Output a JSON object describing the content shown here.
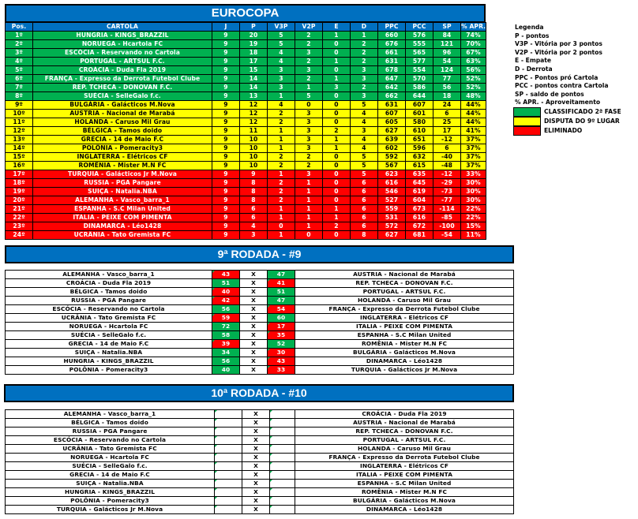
{
  "title": "EUROCOPA",
  "colors": {
    "header": "#0070C0",
    "classified": "#00B050",
    "playoff": "#FFFF00",
    "eliminated": "#FF0000"
  },
  "standings": {
    "columns": [
      "Pos.",
      "CARTOLA",
      "J",
      "P",
      "V3P",
      "V2P",
      "E",
      "D",
      "PPC",
      "PCC",
      "SP",
      "% APR."
    ],
    "rows": [
      {
        "zone": "g",
        "cells": [
          "1º",
          "HUNGRIA - KINGS_BRAZZIL",
          "9",
          "20",
          "5",
          "2",
          "1",
          "1",
          "660",
          "576",
          "84",
          "74%"
        ]
      },
      {
        "zone": "g",
        "cells": [
          "2º",
          "NORUEGA  - Hcartola FC",
          "9",
          "19",
          "5",
          "2",
          "0",
          "2",
          "676",
          "555",
          "121",
          "70%"
        ]
      },
      {
        "zone": "g",
        "cells": [
          "3º",
          "ESCÓCIA - Reservando no Cartola",
          "9",
          "18",
          "4",
          "3",
          "0",
          "2",
          "661",
          "565",
          "96",
          "67%"
        ]
      },
      {
        "zone": "g",
        "cells": [
          "4º",
          "PORTUGAL - ARTSUL F.C.",
          "9",
          "17",
          "4",
          "2",
          "1",
          "2",
          "631",
          "577",
          "54",
          "63%"
        ]
      },
      {
        "zone": "g",
        "cells": [
          "5º",
          "CROÁCIA - Duda Fla 2019",
          "9",
          "15",
          "3",
          "3",
          "0",
          "3",
          "678",
          "554",
          "124",
          "56%"
        ]
      },
      {
        "zone": "g",
        "cells": [
          "6º",
          "FRANÇA - Expresso da Derrota Futebol Clube",
          "9",
          "14",
          "3",
          "2",
          "1",
          "3",
          "647",
          "570",
          "77",
          "52%"
        ]
      },
      {
        "zone": "g",
        "cells": [
          "7º",
          "REP. TCHECA - DONOVAN F.C.",
          "9",
          "14",
          "3",
          "1",
          "3",
          "2",
          "642",
          "586",
          "56",
          "52%"
        ]
      },
      {
        "zone": "g",
        "cells": [
          "8º",
          "SUÉCIA - SelleGalo f.c.",
          "9",
          "13",
          "1",
          "5",
          "0",
          "3",
          "662",
          "644",
          "18",
          "48%"
        ]
      },
      {
        "zone": "y",
        "cells": [
          "9º",
          "BULGÁRIA - Galácticos M.Nova",
          "9",
          "12",
          "4",
          "0",
          "0",
          "5",
          "631",
          "607",
          "24",
          "44%"
        ]
      },
      {
        "zone": "y",
        "cells": [
          "10º",
          "AUSTRIA - Nacional de Marabá",
          "9",
          "12",
          "2",
          "3",
          "0",
          "4",
          "607",
          "601",
          "6",
          "44%"
        ]
      },
      {
        "zone": "y",
        "cells": [
          "11º",
          "HOLANDA - Caruso Mil Grau",
          "9",
          "12",
          "2",
          "3",
          "0",
          "4",
          "605",
          "580",
          "25",
          "44%"
        ]
      },
      {
        "zone": "y",
        "cells": [
          "12º",
          "BÉLGICA - Tamos doido",
          "9",
          "11",
          "1",
          "3",
          "2",
          "3",
          "627",
          "610",
          "17",
          "41%"
        ]
      },
      {
        "zone": "y",
        "cells": [
          "13º",
          "GRECIA - 14 de Maio F.C",
          "9",
          "10",
          "1",
          "3",
          "1",
          "4",
          "639",
          "651",
          "-12",
          "37%"
        ]
      },
      {
        "zone": "y",
        "cells": [
          "14º",
          "POLÔNIA - Pomeracity3",
          "9",
          "10",
          "1",
          "3",
          "1",
          "4",
          "602",
          "596",
          "6",
          "37%"
        ]
      },
      {
        "zone": "y",
        "cells": [
          "15º",
          "INGLATERRA - Elétricos CF",
          "9",
          "10",
          "2",
          "2",
          "0",
          "5",
          "592",
          "632",
          "-40",
          "37%"
        ]
      },
      {
        "zone": "y",
        "cells": [
          "16º",
          "ROMÊNIA - Mister M.N FC",
          "9",
          "10",
          "2",
          "2",
          "0",
          "5",
          "567",
          "615",
          "-48",
          "37%"
        ]
      },
      {
        "zone": "r",
        "cells": [
          "17º",
          "TURQUIA - Galácticos Jr M.Nova",
          "9",
          "9",
          "1",
          "3",
          "0",
          "5",
          "623",
          "635",
          "-12",
          "33%"
        ]
      },
      {
        "zone": "r",
        "cells": [
          "18º",
          "RUSSIA - PGA Pangare",
          "9",
          "8",
          "2",
          "1",
          "0",
          "6",
          "616",
          "645",
          "-29",
          "30%"
        ]
      },
      {
        "zone": "r",
        "cells": [
          "19º",
          "SUIÇA - Natalia.NBA",
          "9",
          "8",
          "2",
          "1",
          "0",
          "6",
          "546",
          "619",
          "-73",
          "30%"
        ]
      },
      {
        "zone": "r",
        "cells": [
          "20º",
          "ALEMANHA - Vasco_barra_1",
          "9",
          "8",
          "2",
          "1",
          "0",
          "6",
          "527",
          "604",
          "-77",
          "30%"
        ]
      },
      {
        "zone": "r",
        "cells": [
          "21º",
          "ESPANHA - S.C Milan United",
          "9",
          "6",
          "1",
          "1",
          "1",
          "6",
          "559",
          "673",
          "-114",
          "22%"
        ]
      },
      {
        "zone": "r",
        "cells": [
          "22º",
          "ITALIA - PEIXE COM PIMENTA",
          "9",
          "6",
          "1",
          "1",
          "1",
          "6",
          "531",
          "616",
          "-85",
          "22%"
        ]
      },
      {
        "zone": "r",
        "cells": [
          "23º",
          "DINAMARCA - Léo1428",
          "9",
          "4",
          "0",
          "1",
          "2",
          "6",
          "572",
          "672",
          "-100",
          "15%"
        ]
      },
      {
        "zone": "r",
        "cells": [
          "24º",
          "UCRÂNIA - Tato Gremista FC",
          "9",
          "3",
          "1",
          "0",
          "0",
          "8",
          "627",
          "681",
          "-54",
          "11%"
        ]
      }
    ]
  },
  "legend": {
    "title": "Legenda",
    "items": [
      "P - pontos",
      "V3P - Vitória por 3 pontos",
      "V2P - Vitória por 2 pontos",
      "E - Empate",
      "D - Derrota",
      "PPC - Pontos pró Cartola",
      "PCC - pontos contra Cartola",
      "SP - saldo de pontos",
      "% APR. - Aproveitamento"
    ],
    "zones": [
      {
        "color": "#00B050",
        "label": "CLASSIFICADO 2ª FASE"
      },
      {
        "color": "#FFFF00",
        "label": "DISPUTA DO 9º LUGAR"
      },
      {
        "color": "#FF0000",
        "label": "ELIMINADO"
      }
    ]
  },
  "round9": {
    "title": "9ª RODADA - #9",
    "vs": "X",
    "matches": [
      {
        "home": "ALEMANHA - Vasco_barra_1",
        "hs": "43",
        "as": "47",
        "away": "AUSTRIA - Nacional de Marabá"
      },
      {
        "home": "CROÁCIA - Duda Fla 2019",
        "hs": "51",
        "as": "41",
        "away": "REP. TCHECA - DONOVAN F.C."
      },
      {
        "home": "BÉLGICA - Tamos doido",
        "hs": "40",
        "as": "51",
        "away": "PORTUGAL - ARTSUL F.C."
      },
      {
        "home": "RUSSIA - PGA Pangare",
        "hs": "42",
        "as": "47",
        "away": "HOLANDA - Caruso Mil Grau"
      },
      {
        "home": "ESCÓCIA - Reservando no Cartola",
        "hs": "56",
        "as": "54",
        "away": "FRANÇA - Expresso da Derrota Futebol Clube"
      },
      {
        "home": "UCRÂNIA - Tato Gremista FC",
        "hs": "59",
        "as": "60",
        "away": "INGLATERRA - Elétricos CF"
      },
      {
        "home": "NORUEGA  - Hcartola FC",
        "hs": "72",
        "as": "17",
        "away": "ITALIA - PEIXE COM PIMENTA"
      },
      {
        "home": "SUÉCIA - SelleGalo f.c.",
        "hs": "58",
        "as": "35",
        "away": "ESPANHA - S.C Milan United"
      },
      {
        "home": "GRECIA - 14 de Maio F.C",
        "hs": "39",
        "as": "52",
        "away": "ROMÊNIA - Mister M.N FC"
      },
      {
        "home": "SUIÇA - Natalia.NBA",
        "hs": "34",
        "as": "30",
        "away": "BULGÁRIA - Galácticos M.Nova"
      },
      {
        "home": "HUNGRIA - KINGS_BRAZZIL",
        "hs": "56",
        "as": "43",
        "away": "DINAMARCA - Léo1428"
      },
      {
        "home": "POLÔNIA - Pomeracity3",
        "hs": "40",
        "as": "33",
        "away": "TURQUIA - Galácticos Jr M.Nova"
      }
    ]
  },
  "round10": {
    "title": "10ª RODADA - #10",
    "vs": "X",
    "matches": [
      {
        "home": "ALEMANHA - Vasco_barra_1",
        "hs": "",
        "as": "",
        "away": "CROÁCIA - Duda Fla 2019"
      },
      {
        "home": "BÉLGICA - Tamos doido",
        "hs": "",
        "as": "",
        "away": "AUSTRIA - Nacional de Marabá"
      },
      {
        "home": "RUSSIA - PGA Pangare",
        "hs": "",
        "as": "",
        "away": "REP. TCHECA - DONOVAN F.C."
      },
      {
        "home": "ESCÓCIA - Reservando no Cartola",
        "hs": "",
        "as": "",
        "away": "PORTUGAL - ARTSUL F.C."
      },
      {
        "home": "UCRÂNIA - Tato Gremista FC",
        "hs": "",
        "as": "",
        "away": "HOLANDA - Caruso Mil Grau"
      },
      {
        "home": "NORUEGA  - Hcartola FC",
        "hs": "",
        "as": "",
        "away": "FRANÇA - Expresso da Derrota Futebol Clube"
      },
      {
        "home": "SUÉCIA - SelleGalo f.c.",
        "hs": "",
        "as": "",
        "away": "INGLATERRA - Elétricos CF"
      },
      {
        "home": "GRECIA - 14 de Maio F.C",
        "hs": "",
        "as": "",
        "away": "ITALIA - PEIXE COM PIMENTA"
      },
      {
        "home": "SUIÇA - Natalia.NBA",
        "hs": "",
        "as": "",
        "away": "ESPANHA - S.C Milan United"
      },
      {
        "home": "HUNGRIA - KINGS_BRAZZIL",
        "hs": "",
        "as": "",
        "away": "ROMÊNIA - Mister M.N FC"
      },
      {
        "home": "POLÔNIA - Pomeracity3",
        "hs": "",
        "as": "",
        "away": "BULGÁRIA - Galácticos M.Nova"
      },
      {
        "home": "TURQUIA - Galácticos Jr M.Nova",
        "hs": "",
        "as": "",
        "away": "DINAMARCA - Léo1428"
      }
    ]
  }
}
